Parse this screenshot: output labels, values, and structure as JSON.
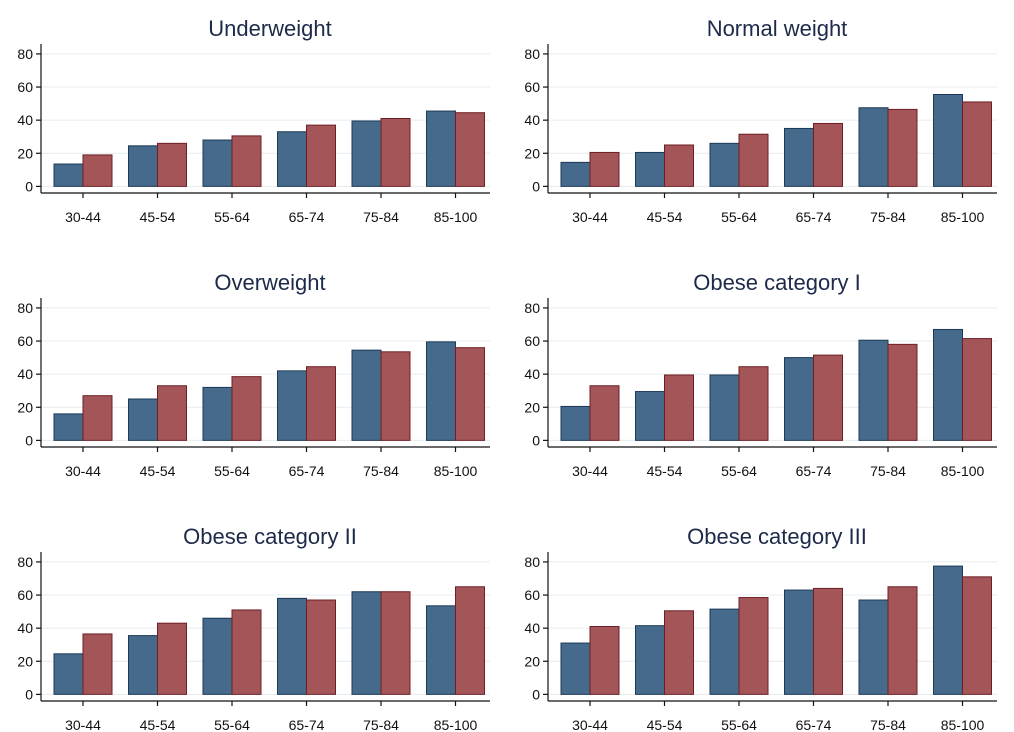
{
  "chart_data": [
    {
      "type": "bar",
      "title": "Underweight",
      "categories": [
        "30-44",
        "45-54",
        "55-64",
        "65-74",
        "75-84",
        "85-100"
      ],
      "series": [
        {
          "values": [
            13.5,
            24.5,
            28,
            33,
            39.5,
            45.5
          ]
        },
        {
          "values": [
            19,
            26,
            30.5,
            37,
            41,
            44.5
          ]
        }
      ],
      "yticks": [
        "0",
        "20",
        "40",
        "60",
        "80"
      ],
      "ylim": [
        -4,
        86
      ],
      "grid": true
    },
    {
      "type": "bar",
      "title": "Normal weight",
      "categories": [
        "30-44",
        "45-54",
        "55-64",
        "65-74",
        "75-84",
        "85-100"
      ],
      "series": [
        {
          "values": [
            14.5,
            20.5,
            26,
            35,
            47.5,
            55.5
          ]
        },
        {
          "values": [
            20.5,
            25,
            31.5,
            38,
            46.5,
            51
          ]
        }
      ],
      "yticks": [
        "0",
        "20",
        "40",
        "60",
        "80"
      ],
      "ylim": [
        -4,
        86
      ],
      "grid": true
    },
    {
      "type": "bar",
      "title": "Overweight",
      "categories": [
        "30-44",
        "45-54",
        "55-64",
        "65-74",
        "75-84",
        "85-100"
      ],
      "series": [
        {
          "values": [
            16,
            25,
            32,
            42,
            54.5,
            59.5
          ]
        },
        {
          "values": [
            27,
            33,
            38.5,
            44.5,
            53.5,
            56
          ]
        }
      ],
      "yticks": [
        "0",
        "20",
        "40",
        "60",
        "80"
      ],
      "ylim": [
        -4,
        86
      ],
      "grid": true
    },
    {
      "type": "bar",
      "title": "Obese category I",
      "categories": [
        "30-44",
        "45-54",
        "55-64",
        "65-74",
        "75-84",
        "85-100"
      ],
      "series": [
        {
          "values": [
            20.5,
            29.5,
            39.5,
            50,
            60.5,
            67
          ]
        },
        {
          "values": [
            33,
            39.5,
            44.5,
            51.5,
            58,
            61.5
          ]
        }
      ],
      "yticks": [
        "0",
        "20",
        "40",
        "60",
        "80"
      ],
      "ylim": [
        -4,
        86
      ],
      "grid": true
    },
    {
      "type": "bar",
      "title": "Obese category II",
      "categories": [
        "30-44",
        "45-54",
        "55-64",
        "65-74",
        "75-84",
        "85-100"
      ],
      "series": [
        {
          "values": [
            24.5,
            35.5,
            46,
            58,
            62,
            53.5
          ]
        },
        {
          "values": [
            36.5,
            43,
            51,
            57,
            62,
            65
          ]
        }
      ],
      "yticks": [
        "0",
        "20",
        "40",
        "60",
        "80"
      ],
      "ylim": [
        -4,
        86
      ],
      "grid": true
    },
    {
      "type": "bar",
      "title": "Obese category III",
      "categories": [
        "30-44",
        "45-54",
        "55-64",
        "65-74",
        "75-84",
        "85-100"
      ],
      "series": [
        {
          "values": [
            31,
            41.5,
            51.5,
            63,
            57,
            77.5
          ]
        },
        {
          "values": [
            41,
            50.5,
            58.5,
            64,
            65,
            71
          ]
        }
      ],
      "yticks": [
        "0",
        "20",
        "40",
        "60",
        "80"
      ],
      "ylim": [
        -4,
        86
      ],
      "grid": true
    }
  ],
  "colors": {
    "series_1": "#456a8c",
    "series_2": "#a35558",
    "bar_outline_1": "#1c3a56",
    "bar_outline_2": "#6e1f25",
    "title": "#1e2a4a",
    "grid": "#e6ecef",
    "axis": "#111111"
  }
}
